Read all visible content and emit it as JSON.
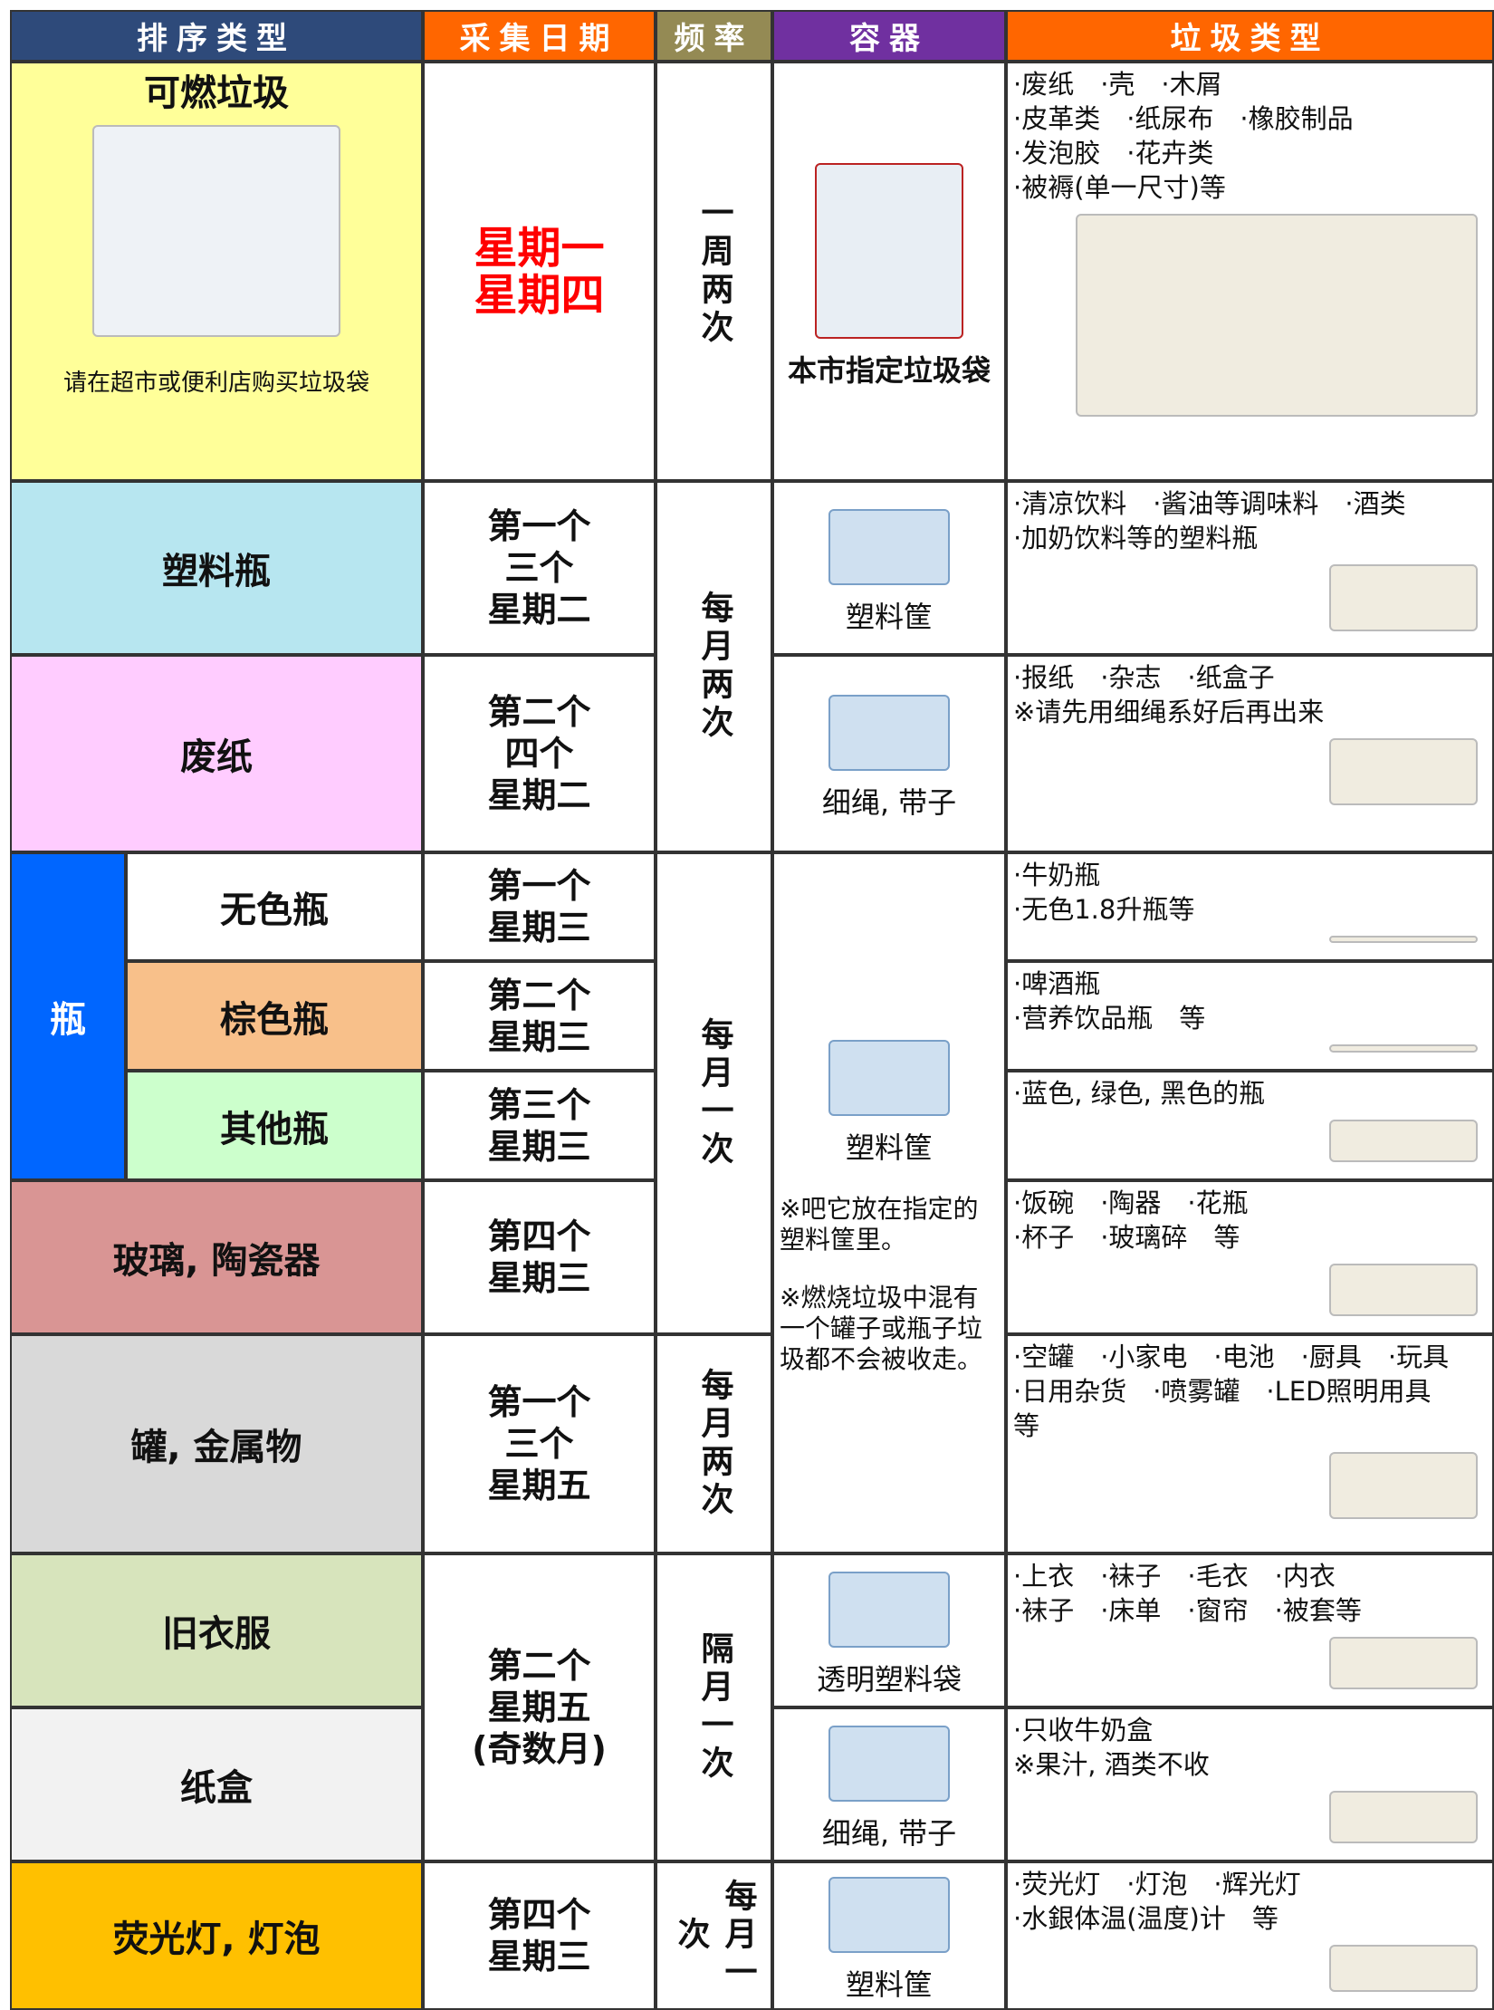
{
  "header": [
    "排序类型",
    "采集日期",
    "频率",
    "容器",
    "垃圾类型"
  ],
  "bottle_group": "瓶",
  "categories": [
    "可燃垃圾",
    "塑料瓶",
    "废纸",
    "无色瓶",
    "棕色瓶",
    "其他瓶",
    "玻璃, 陶瓷器",
    "罐, 金属物",
    "旧衣服",
    "纸盒",
    "荧光灯, 灯泡"
  ],
  "burnable_note": "请在超市或便利店购买垃圾袋",
  "dates": [
    [
      "星期一",
      "星期四"
    ],
    [
      "第一个",
      "三个",
      "星期二"
    ],
    [
      "第二个",
      "四个",
      "星期二"
    ],
    [
      "第一个",
      "星期三"
    ],
    [
      "第二个",
      "星期三"
    ],
    [
      "第三个",
      "星期三"
    ],
    [
      "第四个",
      "星期三"
    ],
    [
      "第一个",
      "三个",
      "星期五"
    ],
    [
      "第二个",
      "星期五",
      "(奇数月)"
    ],
    [
      "第四个",
      "星期三"
    ]
  ],
  "frequencies": [
    "一周两次",
    "每月两次",
    "每月一次",
    "每月两次",
    "隔月一次",
    "每月一次"
  ],
  "containers": [
    "本市指定垃圾袋",
    "塑料筐",
    "细绳, 带子",
    "塑料筐",
    "透明塑料袋",
    "细绳, 带子",
    "塑料筐"
  ],
  "container_notes": [
    "※吧它放在指定的塑料筐里。",
    "※燃烧垃圾中混有一个罐子或瓶子垃圾都不会被收走。"
  ],
  "items": [
    [
      "·废纸　·壳　·木屑",
      "·皮革类　·纸尿布　·橡胶制品",
      "·发泡胶　·花卉类",
      "·被褥(单一尺寸)等"
    ],
    [
      "·清凉饮料　·酱油等调味料　·酒类",
      "·加奶饮料等的塑料瓶"
    ],
    [
      "·报纸　·杂志　·纸盒子",
      "※请先用细绳系好后再出来"
    ],
    [
      "·牛奶瓶",
      "·无色1.8升瓶等"
    ],
    [
      "·啤酒瓶",
      "·营养饮品瓶　等"
    ],
    [
      "·蓝色, 绿色, 黑色的瓶"
    ],
    [
      "·饭碗　·陶器　·花瓶",
      "·杯子　·玻璃碎　等"
    ],
    [
      "·空罐　·小家电　·电池　·厨具　·玩具",
      "·日用杂货　·喷雾罐　·LED照明用具",
      "等"
    ],
    [
      "·上衣　·袜子　·毛衣　·内衣",
      "·袜子　·床单　·窗帘　·被套等"
    ],
    [
      "·只收牛奶盒",
      "※果汁, 酒类不收"
    ],
    [
      "·荧光灯　·灯泡　·辉光灯",
      "·水銀体温(温度)计　等"
    ]
  ]
}
